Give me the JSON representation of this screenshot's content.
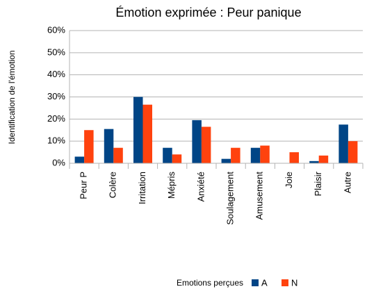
{
  "chart_data": {
    "type": "bar",
    "title": "Émotion exprimée : Peur panique",
    "y_label": "Identification de l'émotion",
    "x_label": "Emotions perçues",
    "categories": [
      "Peur P",
      "Colère",
      "Irritation",
      "Mépris",
      "Anxiété",
      "Soulagement",
      "Amusement",
      "Joie",
      "Plaisir",
      "Autre"
    ],
    "series": [
      {
        "name": "A",
        "color": "#004586",
        "values": [
          3,
          15.5,
          30,
          7,
          19.5,
          2,
          7,
          0,
          1,
          17.5
        ]
      },
      {
        "name": "N",
        "color": "#ff420e",
        "values": [
          15,
          7,
          26.5,
          4,
          16.5,
          7,
          8,
          5,
          3.5,
          10
        ]
      }
    ],
    "ylim": [
      0,
      60
    ],
    "yticks": [
      {
        "value": 0,
        "label": "0%"
      },
      {
        "value": 10,
        "label": "10%"
      },
      {
        "value": 20,
        "label": "20%"
      },
      {
        "value": 30,
        "label": "30%"
      },
      {
        "value": 40,
        "label": "40%"
      },
      {
        "value": 50,
        "label": "50%"
      },
      {
        "value": 60,
        "label": "60%"
      }
    ],
    "grid": true,
    "legend": "bottom"
  }
}
